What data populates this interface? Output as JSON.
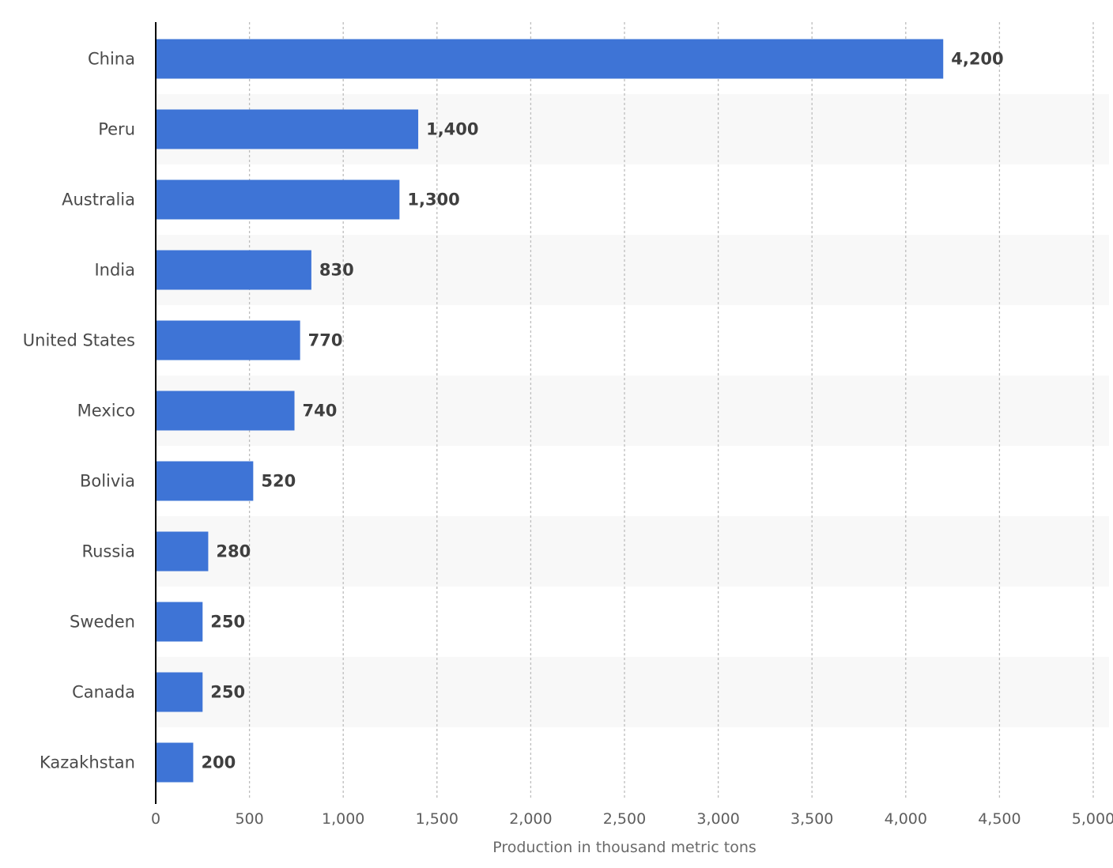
{
  "chart_data": {
    "type": "bar",
    "orientation": "horizontal",
    "title": "",
    "xlabel": "Production in thousand metric tons",
    "ylabel": "",
    "categories": [
      "China",
      "Peru",
      "Australia",
      "India",
      "United States",
      "Mexico",
      "Bolivia",
      "Russia",
      "Sweden",
      "Canada",
      "Kazakhstan"
    ],
    "values": [
      4200,
      1400,
      1300,
      830,
      770,
      740,
      520,
      280,
      250,
      250,
      200
    ],
    "value_labels": [
      "4,200",
      "1,400",
      "1,300",
      "830",
      "770",
      "740",
      "520",
      "280",
      "250",
      "250",
      "200"
    ],
    "xlim": [
      0,
      5000
    ],
    "xticks": [
      0,
      500,
      1000,
      1500,
      2000,
      2500,
      3000,
      3500,
      4000,
      4500,
      5000
    ],
    "xtick_labels": [
      "0",
      "500",
      "1,000",
      "1,500",
      "2,000",
      "2,500",
      "3,000",
      "3,500",
      "4,000",
      "4,500",
      "5,000"
    ],
    "grid": "vertical dashed",
    "legend": "none",
    "colors": {
      "bar": "#3e74d6",
      "band": "#f8f8f8"
    }
  }
}
